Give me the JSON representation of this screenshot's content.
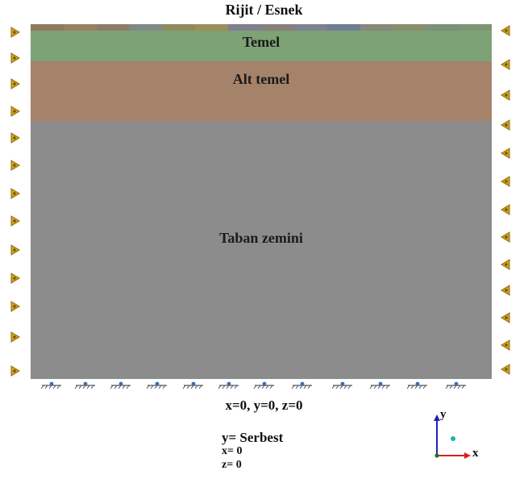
{
  "title": "Rijit / Esnek",
  "layers": {
    "temel": "Temel",
    "alt_temel": "Alt temel",
    "taban_zemini": "Taban zemini"
  },
  "boundary": {
    "bottom": "x=0, y=0, z=0",
    "y": "y= Serbest",
    "x": "x= 0",
    "z": "z= 0"
  },
  "axes": {
    "y": "y",
    "x": "x"
  },
  "colors": {
    "temel": "#7da276",
    "alt_temel": "#a5826a",
    "taban_zemini": "#8c8c8c",
    "roller_support": "#d4a017",
    "x_axis": "#d62020",
    "y_axis": "#2020c0",
    "origin_dot": "#19b3b3"
  }
}
